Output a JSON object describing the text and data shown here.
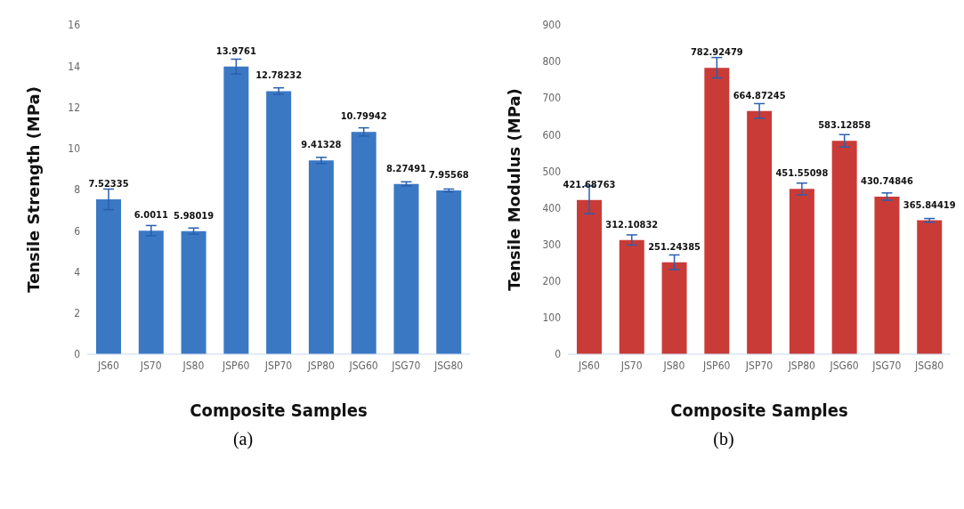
{
  "chart_data": [
    {
      "type": "bar",
      "xlabel": "Composite Samples",
      "ylabel": "Tensile Strength (MPa)",
      "categories": [
        "JS60",
        "JS70",
        "JS80",
        "JSP60",
        "JSP70",
        "JSP80",
        "JSG60",
        "JSG70",
        "JSG80"
      ],
      "values": [
        7.52335,
        6.0011,
        5.98019,
        13.9761,
        12.78232,
        9.41328,
        10.79942,
        8.27491,
        7.95568
      ],
      "errors": [
        0.5,
        0.25,
        0.15,
        0.36,
        0.16,
        0.15,
        0.2,
        0.1,
        0.07
      ],
      "color": "#3b78c4",
      "ylim": [
        0,
        16
      ],
      "yticks": [
        0,
        2,
        4,
        6,
        8,
        10,
        12,
        14,
        16
      ],
      "data_labels": true,
      "grid": false,
      "legend": false,
      "annotations": [
        "(a)"
      ]
    },
    {
      "type": "bar",
      "xlabel": "Composite Samples",
      "ylabel": "Tensile Modulus (MPa)",
      "categories": [
        "JS60",
        "JS70",
        "JS80",
        "JSP60",
        "JSP70",
        "JSP80",
        "JSG60",
        "JSG70",
        "JSG80"
      ],
      "values": [
        421.68763,
        312.10832,
        251.24385,
        782.92479,
        664.87245,
        451.55098,
        583.12858,
        430.74846,
        365.84419
      ],
      "errors": [
        38,
        14,
        20,
        28,
        20,
        16,
        17,
        10,
        5
      ],
      "color": "#c93b37",
      "ylim": [
        0,
        900
      ],
      "yticks": [
        0,
        100,
        200,
        300,
        400,
        500,
        600,
        700,
        800,
        900
      ],
      "data_labels": true,
      "grid": false,
      "legend": false,
      "annotations": [
        "(b)"
      ]
    }
  ]
}
